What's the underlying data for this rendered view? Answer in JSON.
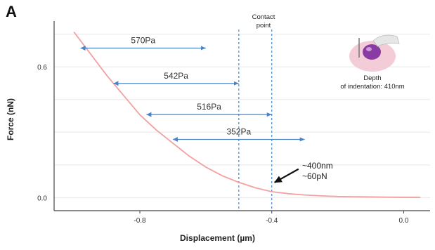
{
  "figure": {
    "panel_label": "A",
    "contact_point_label_line1": "Contact",
    "contact_point_label_line2": "point",
    "depth_label_line1": "Depth",
    "depth_label_line2": "of indentation: 410nm",
    "annotation_line1": "~400nm",
    "annotation_line2": "~60pN"
  },
  "colors": {
    "curve": "#f4a0a0",
    "arrows": "#4a84c4",
    "contact_lines": "#4a84c4",
    "axes": "#444444",
    "grid": "#e8e8e8",
    "cell_outer": "#f2c6d4",
    "cell_nucleus": "#8a3aa3"
  },
  "chart_data": {
    "type": "line",
    "title": "",
    "xlabel": "Displacement (µm)",
    "ylabel": "Force (nN)",
    "xlim": [
      -1.06,
      0.08
    ],
    "ylim": [
      -0.06,
      0.81
    ],
    "grid": true,
    "x_ticks": [
      {
        "value": -0.8,
        "label": "-0.8"
      },
      {
        "value": -0.4,
        "label": "-0.4"
      },
      {
        "value": 0.0,
        "label": "0.0"
      }
    ],
    "y_ticks": [
      {
        "value": 0.0,
        "label": "0.0"
      },
      {
        "value": 0.6,
        "label": "0.6"
      }
    ],
    "series": [
      {
        "x": [
          -1.0,
          -0.95,
          -0.9,
          -0.85,
          -0.8,
          -0.75,
          -0.7,
          -0.65,
          -0.6,
          -0.55,
          -0.5,
          -0.45,
          -0.4,
          -0.35,
          -0.3,
          -0.25,
          -0.2,
          -0.15,
          -0.1,
          -0.05,
          0.0,
          0.05
        ],
        "y": [
          0.76,
          0.66,
          0.56,
          0.47,
          0.38,
          0.31,
          0.25,
          0.19,
          0.14,
          0.1,
          0.07,
          0.045,
          0.027,
          0.018,
          0.012,
          0.008,
          0.005,
          0.004,
          0.003,
          0.002,
          0.0015,
          0.001
        ]
      }
    ],
    "contact_lines_x": [
      -0.5,
      -0.4
    ],
    "arrows": [
      {
        "label": "570Pa",
        "x_start": -0.98,
        "x_end": -0.6,
        "y": 0.686
      },
      {
        "label": "542Pa",
        "x_start": -0.88,
        "x_end": -0.5,
        "y": 0.524
      },
      {
        "label": "516Pa",
        "x_start": -0.78,
        "x_end": -0.4,
        "y": 0.381
      },
      {
        "label": "352Pa",
        "x_start": -0.7,
        "x_end": -0.3,
        "y": 0.267
      }
    ],
    "annotation_point": {
      "x": -0.4,
      "y": 0.06
    }
  }
}
